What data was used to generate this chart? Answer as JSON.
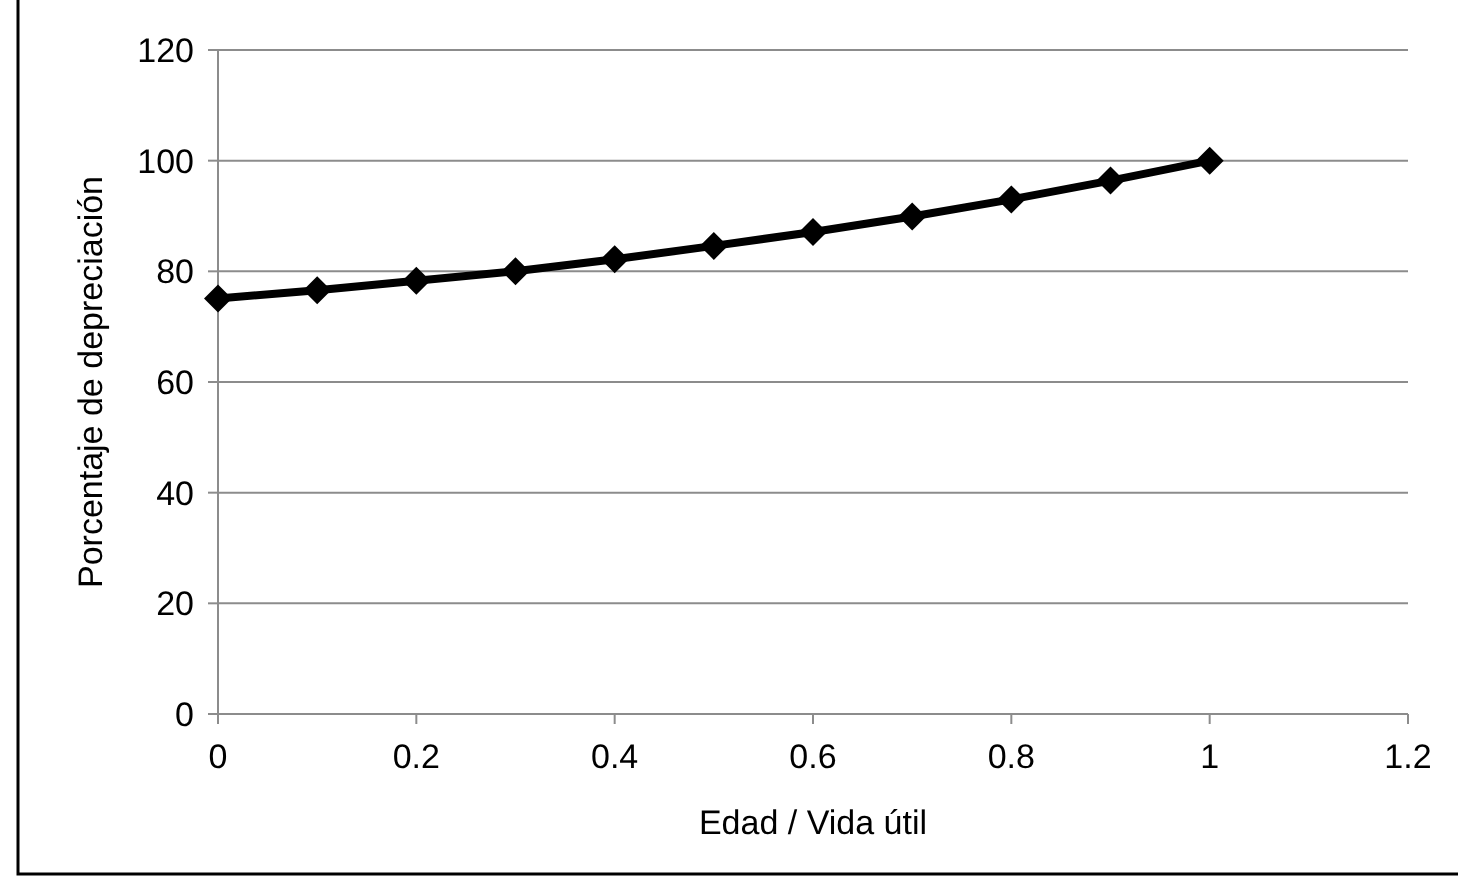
{
  "chart_data": {
    "type": "line",
    "xlabel": "Edad / Vida útil",
    "ylabel": "Porcentaje de depreciación",
    "x": [
      0,
      0.1,
      0.2,
      0.3,
      0.4,
      0.5,
      0.6,
      0.7,
      0.8,
      0.9,
      1
    ],
    "series": [
      {
        "color": "#000000",
        "values": [
          75.1,
          76.6,
          78.3,
          80,
          82.2,
          84.6,
          87.1,
          89.9,
          93,
          96.4,
          100
        ]
      }
    ],
    "xlim": [
      0,
      1.2
    ],
    "xticks": [
      0,
      0.2,
      0.4,
      0.6,
      0.8,
      1,
      1.2
    ],
    "ylim": [
      0,
      120
    ],
    "yticks": [
      0,
      20,
      40,
      60,
      80,
      100,
      120
    ],
    "grid": "y",
    "marker": "diamond",
    "line_style": "solid"
  }
}
